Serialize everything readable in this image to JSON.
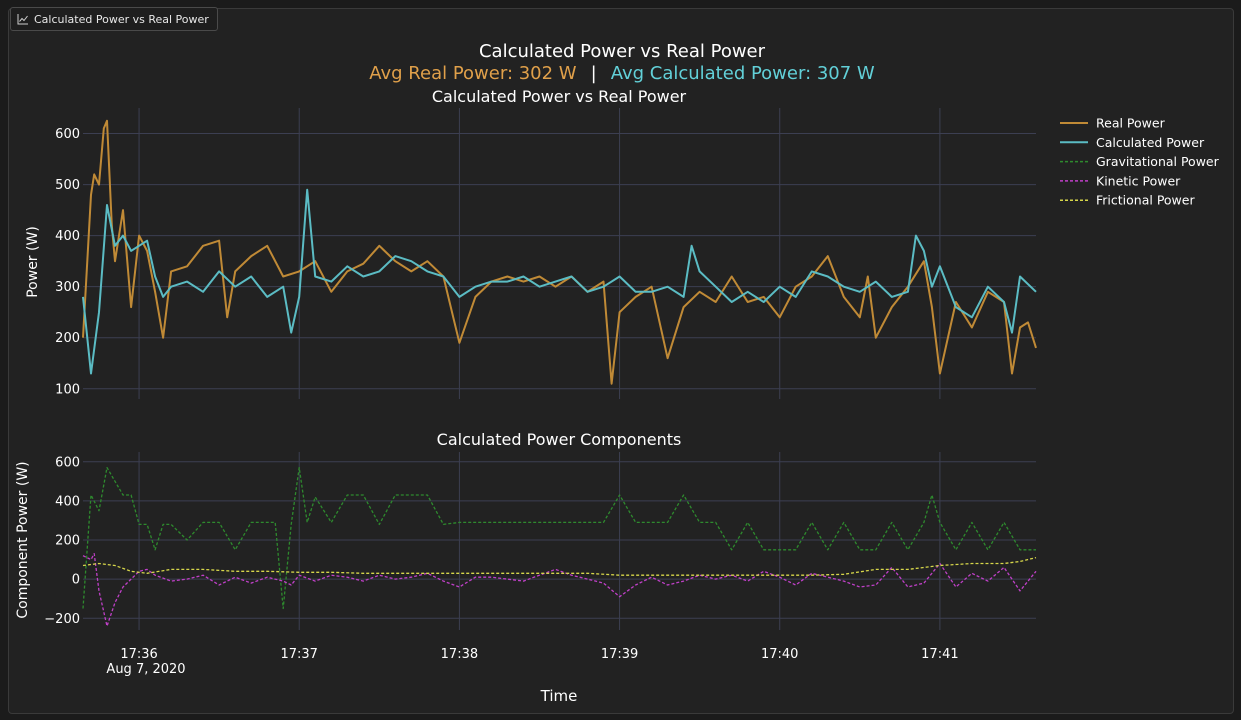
{
  "window": {
    "tab_label": "Calculated Power vs Real Power",
    "tab_icon": "line-chart-icon"
  },
  "colors": {
    "real": "#c08a36",
    "calculated": "#5bbcc4",
    "gravitational": "#2e8a2e",
    "kinetic": "#c040c8",
    "frictional": "#d6d64a",
    "avg_real_text": "#e0a04a",
    "avg_calc_text": "#62d0d8",
    "grid": "#3c3f52"
  },
  "chart_data": {
    "title": "Calculated Power vs Real Power",
    "subtitle": {
      "avg_real": "Avg Real Power: 302 W",
      "separator": "|",
      "avg_calc": "Avg Calculated Power: 307 W"
    },
    "xlabel": "Time",
    "x_ticks": [
      "17:36",
      "17:37",
      "17:38",
      "17:39",
      "17:40",
      "17:41"
    ],
    "x_tick_date": "Aug 7, 2020",
    "x_range_minutes": [
      35.65,
      41.6
    ],
    "legend": [
      "Real Power",
      "Calculated Power",
      "Gravitational Power",
      "Kinetic Power",
      "Frictional Power"
    ],
    "legend_position": "top-right",
    "subplots": [
      {
        "type": "line",
        "title": "Calculated Power vs Real Power",
        "ylabel": "Power (W)",
        "ylim": [
          80,
          650
        ],
        "y_ticks": [
          100,
          200,
          300,
          400,
          500,
          600
        ],
        "grid": true,
        "series": [
          {
            "name": "Real Power",
            "x": [
              35.65,
              35.7,
              35.72,
              35.75,
              35.78,
              35.8,
              35.83,
              35.85,
              35.9,
              35.95,
              36.0,
              36.05,
              36.1,
              36.15,
              36.2,
              36.3,
              36.4,
              36.5,
              36.55,
              36.6,
              36.7,
              36.8,
              36.9,
              37.0,
              37.1,
              37.2,
              37.3,
              37.4,
              37.5,
              37.6,
              37.7,
              37.8,
              37.9,
              38.0,
              38.1,
              38.2,
              38.3,
              38.4,
              38.5,
              38.6,
              38.7,
              38.8,
              38.9,
              38.95,
              39.0,
              39.1,
              39.2,
              39.3,
              39.4,
              39.5,
              39.6,
              39.7,
              39.8,
              39.9,
              40.0,
              40.1,
              40.2,
              40.3,
              40.4,
              40.5,
              40.55,
              40.6,
              40.7,
              40.8,
              40.9,
              40.95,
              41.0,
              41.1,
              41.2,
              41.3,
              41.4,
              41.45,
              41.5,
              41.55,
              41.6
            ],
            "values": [
              200,
              480,
              520,
              500,
              610,
              625,
              420,
              350,
              450,
              260,
              400,
              370,
              290,
              200,
              330,
              340,
              380,
              390,
              240,
              330,
              360,
              380,
              320,
              330,
              350,
              290,
              330,
              345,
              380,
              350,
              330,
              350,
              320,
              190,
              280,
              310,
              320,
              310,
              320,
              300,
              320,
              290,
              310,
              110,
              250,
              280,
              300,
              160,
              260,
              290,
              270,
              320,
              270,
              280,
              240,
              300,
              320,
              360,
              280,
              240,
              320,
              200,
              260,
              300,
              350,
              260,
              130,
              270,
              220,
              290,
              270,
              130,
              220,
              230,
              180
            ]
          },
          {
            "name": "Calculated Power",
            "x": [
              35.65,
              35.7,
              35.75,
              35.8,
              35.85,
              35.9,
              35.95,
              36.0,
              36.05,
              36.1,
              36.15,
              36.2,
              36.3,
              36.4,
              36.5,
              36.6,
              36.7,
              36.8,
              36.9,
              36.95,
              37.0,
              37.05,
              37.1,
              37.2,
              37.3,
              37.4,
              37.5,
              37.6,
              37.7,
              37.8,
              37.9,
              38.0,
              38.1,
              38.2,
              38.3,
              38.4,
              38.5,
              38.6,
              38.7,
              38.8,
              38.9,
              39.0,
              39.1,
              39.2,
              39.3,
              39.4,
              39.45,
              39.5,
              39.6,
              39.7,
              39.8,
              39.9,
              40.0,
              40.1,
              40.2,
              40.3,
              40.4,
              40.5,
              40.6,
              40.7,
              40.8,
              40.85,
              40.9,
              40.95,
              41.0,
              41.1,
              41.2,
              41.3,
              41.4,
              41.45,
              41.5,
              41.6
            ],
            "values": [
              280,
              130,
              250,
              460,
              380,
              400,
              370,
              380,
              390,
              320,
              280,
              300,
              310,
              290,
              330,
              300,
              320,
              280,
              300,
              210,
              280,
              490,
              320,
              310,
              340,
              320,
              330,
              360,
              350,
              330,
              320,
              280,
              300,
              310,
              310,
              320,
              300,
              310,
              320,
              290,
              300,
              320,
              290,
              290,
              300,
              280,
              380,
              330,
              300,
              270,
              290,
              270,
              300,
              280,
              330,
              320,
              300,
              290,
              310,
              280,
              290,
              400,
              370,
              300,
              340,
              260,
              240,
              300,
              270,
              210,
              320,
              290
            ]
          }
        ]
      },
      {
        "type": "line",
        "title": "Calculated Power Components",
        "ylabel": "Component Power (W)",
        "ylim": [
          -260,
          650
        ],
        "y_ticks": [
          -200,
          0,
          200,
          400,
          600
        ],
        "grid": true,
        "series": [
          {
            "name": "Gravitational Power",
            "x": [
              35.65,
              35.7,
              35.75,
              35.8,
              35.85,
              35.9,
              35.95,
              36.0,
              36.05,
              36.1,
              36.15,
              36.2,
              36.3,
              36.4,
              36.5,
              36.6,
              36.7,
              36.8,
              36.85,
              36.9,
              36.95,
              37.0,
              37.05,
              37.1,
              37.2,
              37.3,
              37.4,
              37.5,
              37.6,
              37.7,
              37.8,
              37.9,
              38.0,
              38.1,
              38.2,
              38.3,
              38.4,
              38.5,
              38.6,
              38.7,
              38.8,
              38.9,
              39.0,
              39.1,
              39.2,
              39.3,
              39.4,
              39.5,
              39.6,
              39.7,
              39.8,
              39.9,
              40.0,
              40.1,
              40.2,
              40.3,
              40.4,
              40.5,
              40.6,
              40.7,
              40.8,
              40.9,
              40.95,
              41.0,
              41.1,
              41.2,
              41.3,
              41.4,
              41.5,
              41.6
            ],
            "values": [
              -150,
              430,
              350,
              570,
              500,
              430,
              430,
              280,
              280,
              150,
              280,
              280,
              200,
              290,
              290,
              150,
              290,
              290,
              290,
              -150,
              280,
              570,
              290,
              420,
              290,
              430,
              430,
              280,
              430,
              430,
              430,
              280,
              290,
              290,
              290,
              290,
              290,
              290,
              290,
              290,
              290,
              290,
              430,
              290,
              290,
              290,
              430,
              290,
              290,
              150,
              290,
              150,
              150,
              150,
              290,
              150,
              290,
              150,
              150,
              290,
              150,
              290,
              430,
              290,
              150,
              290,
              150,
              290,
              150,
              150
            ]
          },
          {
            "name": "Kinetic Power",
            "x": [
              35.65,
              35.7,
              35.72,
              35.75,
              35.8,
              35.85,
              35.9,
              36.0,
              36.05,
              36.1,
              36.2,
              36.3,
              36.4,
              36.5,
              36.6,
              36.7,
              36.8,
              36.9,
              36.95,
              37.0,
              37.1,
              37.2,
              37.3,
              37.4,
              37.5,
              37.6,
              37.7,
              37.8,
              37.9,
              38.0,
              38.1,
              38.2,
              38.3,
              38.4,
              38.5,
              38.6,
              38.7,
              38.8,
              38.9,
              39.0,
              39.1,
              39.2,
              39.3,
              39.4,
              39.5,
              39.6,
              39.7,
              39.8,
              39.9,
              40.0,
              40.1,
              40.2,
              40.3,
              40.4,
              40.5,
              40.6,
              40.7,
              40.8,
              40.9,
              41.0,
              41.1,
              41.2,
              41.3,
              41.4,
              41.5,
              41.6
            ],
            "values": [
              120,
              100,
              130,
              -60,
              -240,
              -120,
              -40,
              40,
              50,
              20,
              -10,
              0,
              20,
              -30,
              10,
              -20,
              10,
              -10,
              -30,
              20,
              -10,
              20,
              10,
              -10,
              20,
              0,
              10,
              30,
              -10,
              -40,
              10,
              10,
              0,
              -10,
              20,
              50,
              20,
              0,
              -20,
              -90,
              -30,
              10,
              -30,
              -10,
              20,
              0,
              20,
              -10,
              40,
              10,
              -30,
              30,
              10,
              -10,
              -40,
              -30,
              60,
              -40,
              -20,
              80,
              -40,
              30,
              -10,
              60,
              -60,
              40
            ]
          },
          {
            "name": "Frictional Power",
            "x": [
              35.65,
              35.75,
              35.85,
              35.95,
              36.05,
              36.2,
              36.4,
              36.6,
              36.8,
              37.0,
              37.2,
              37.4,
              37.6,
              37.8,
              38.0,
              38.2,
              38.4,
              38.6,
              38.8,
              39.0,
              39.2,
              39.4,
              39.6,
              39.8,
              40.0,
              40.2,
              40.4,
              40.6,
              40.8,
              41.0,
              41.2,
              41.4,
              41.5,
              41.6
            ],
            "values": [
              70,
              80,
              70,
              40,
              30,
              50,
              50,
              40,
              40,
              35,
              35,
              30,
              30,
              30,
              30,
              30,
              30,
              30,
              30,
              20,
              20,
              20,
              20,
              20,
              20,
              20,
              25,
              50,
              50,
              70,
              80,
              80,
              90,
              110
            ]
          }
        ]
      }
    ]
  }
}
